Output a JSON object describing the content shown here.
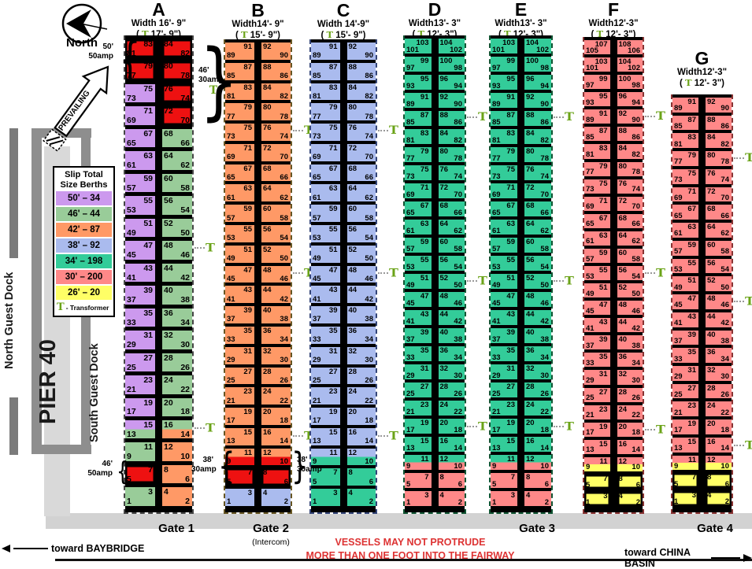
{
  "compass": {
    "label": "North"
  },
  "prevailing_label": "PREVAILING",
  "left_labels": {
    "north_guest_dock": "North Guest Dock",
    "pier": "PIER 40",
    "south_guest_dock": "South Guest Dock"
  },
  "legend": {
    "title_line1": "Slip  Total",
    "title_line2": "Size Berths",
    "rows": [
      {
        "size": "50'",
        "berths": "34",
        "color": "#CC99EE"
      },
      {
        "size": "46'",
        "berths": "44",
        "color": "#99CC99"
      },
      {
        "size": "42'",
        "berths": "87",
        "color": "#FF9966"
      },
      {
        "size": "38'",
        "berths": "92",
        "color": "#AABBEE"
      },
      {
        "size": "34'",
        "berths": "198",
        "color": "#33CC99"
      },
      {
        "size": "30'",
        "berths": "200",
        "color": "#FF8888"
      },
      {
        "size": "26'",
        "berths": "20",
        "color": "#FFFF66"
      }
    ],
    "transformer_label": "- Transformer"
  },
  "colors": {
    "red": "#EE1111",
    "purple": "#CC99EE",
    "green": "#99CC99",
    "orange": "#FF9966",
    "blue": "#AABBEE",
    "teal": "#33CC99",
    "salmon": "#FF8888",
    "yellow": "#FFFF66",
    "transformer_green": "#6BA318",
    "warning_red": "#DD3333"
  },
  "docks": [
    {
      "id": "A",
      "letter": "A",
      "width_label": "Width 16'- 9\"",
      "alt_label": "17'- 9\")",
      "rows": 21,
      "start": 83,
      "left_color": "purple",
      "right_color": "green",
      "overrides": {
        "0": [
          "red",
          "red"
        ],
        "1": [
          "red",
          "red"
        ],
        "2": [
          "purple",
          "red"
        ],
        "3": [
          "purple",
          "red"
        ],
        "17": [
          "purple|green",
          "green|orange"
        ],
        "18": [
          "green",
          "orange"
        ],
        "19": [
          "red",
          "orange"
        ],
        "20": [
          "green",
          "orange"
        ]
      },
      "t_rows": [
        9,
        17
      ]
    },
    {
      "id": "B",
      "letter": "B",
      "width_label": "Width14'- 9\"",
      "alt_label": "15'- 9\")",
      "rows": 23,
      "start": 91,
      "left_color": "orange",
      "right_color": "orange",
      "overrides": {
        "20": [
          "orange|red",
          "orange|red"
        ],
        "21": [
          "red",
          "red"
        ],
        "22": [
          "blue",
          "blue"
        ]
      },
      "t_rows": [
        4,
        11,
        19
      ]
    },
    {
      "id": "C",
      "letter": "C",
      "width_label": "Width 14'-9\"",
      "alt_label": "15'- 9\")",
      "rows": 23,
      "start": 91,
      "left_color": "blue",
      "right_color": "blue",
      "overrides": {
        "20": [
          "blue|teal",
          "blue|teal"
        ],
        "21": [
          "teal",
          "teal"
        ],
        "22": [
          "teal",
          "teal"
        ]
      },
      "t_rows": [
        4,
        11,
        19
      ]
    },
    {
      "id": "D",
      "letter": "D",
      "width_label": "Width13'- 3\"",
      "alt_label": "12'- 3\")",
      "rows": 26,
      "start": 103,
      "left_color": "teal",
      "right_color": "teal",
      "overrides": {
        "23": [
          "teal|salmon",
          "teal|salmon"
        ],
        "24": [
          "salmon",
          "salmon"
        ],
        "25": [
          "salmon",
          "salmon"
        ]
      },
      "t_rows": [
        4,
        13,
        21
      ]
    },
    {
      "id": "E",
      "letter": "E",
      "width_label": "Width13'- 3\"",
      "alt_label": "12'- 3\")",
      "rows": 26,
      "start": 103,
      "left_color": "teal",
      "right_color": "teal",
      "overrides": {
        "23": [
          "teal|salmon",
          "teal|salmon"
        ],
        "24": [
          "salmon",
          "salmon"
        ],
        "25": [
          "salmon",
          "salmon"
        ]
      },
      "t_rows": [
        4,
        13,
        21
      ]
    },
    {
      "id": "F",
      "letter": "F",
      "width_label": "Width12'-3\"",
      "alt_label": "12'- 3\")",
      "rows": 27,
      "start": 107,
      "left_color": "salmon",
      "right_color": "salmon",
      "overrides": {
        "24": [
          "salmon|yellow",
          "salmon|yellow"
        ],
        "25": [
          "yellow",
          "yellow"
        ],
        "26": [
          "yellow",
          "yellow"
        ]
      },
      "t_rows": [
        4,
        13,
        22
      ]
    },
    {
      "id": "G",
      "letter": "G",
      "width_label": "Width12'-3\"",
      "alt_label": "12'- 3\")",
      "rows": 23,
      "start": 91,
      "left_color": "salmon",
      "right_color": "salmon",
      "overrides": {
        "20": [
          "salmon|yellow",
          "salmon|yellow"
        ],
        "21": [
          "yellow",
          "yellow"
        ],
        "22": [
          "yellow",
          "yellow"
        ]
      },
      "t_rows": [
        3,
        11,
        19
      ]
    }
  ],
  "annotations": [
    {
      "id": "a-50-50amp",
      "lines": [
        "50'",
        "50amp"
      ],
      "brace": "{",
      "ticon": false
    },
    {
      "id": "a-46-30amp",
      "lines": [
        "46'",
        "30amp"
      ],
      "brace": "}",
      "ticon": true
    },
    {
      "id": "a-46-50amp",
      "lines": [
        "46'",
        "50amp"
      ],
      "brace": "{",
      "ticon": false
    },
    {
      "id": "b-38-30amp-left",
      "lines": [
        "38'",
        "30amp"
      ],
      "brace": "{",
      "ticon": false
    },
    {
      "id": "b-38-30amp-right",
      "lines": [
        "38'",
        "30amp"
      ],
      "brace": "}",
      "ticon": false
    }
  ],
  "footer": {
    "gates": [
      {
        "label": "Gate 1"
      },
      {
        "label": "Gate 2",
        "sub": "(Intercom)"
      },
      {
        "label": "Gate 3"
      },
      {
        "label": "Gate 4"
      }
    ],
    "warning_line1": "VESSELS MAY NOT PROTRUDE",
    "warning_line2": "MORE THAN ONE FOOT INTO THE FAIRWAY",
    "toward_left": "toward BAYBRIDGE",
    "toward_right": "toward CHINA BASIN"
  }
}
